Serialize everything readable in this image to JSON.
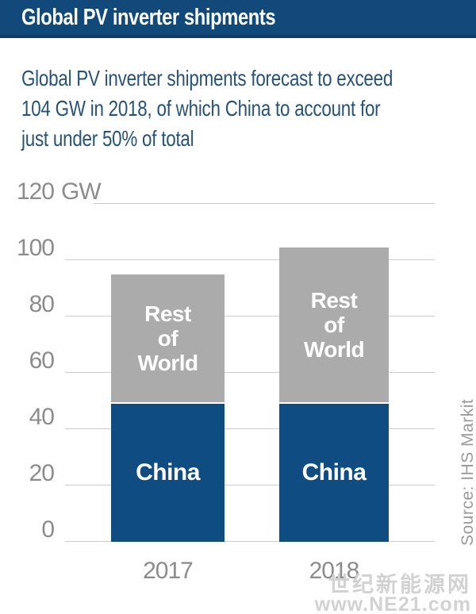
{
  "header": {
    "title": "Global PV inverter shipments"
  },
  "subtitle": {
    "lines": [
      "Global PV inverter shipments forecast to exceed",
      "104 GW in 2018, of which China to account for",
      "just under 50% of total"
    ]
  },
  "chart_data": {
    "type": "bar",
    "stacked": true,
    "categories": [
      "2017",
      "2018"
    ],
    "series": [
      {
        "name": "China",
        "values": [
          49,
          49
        ],
        "color": "#0e4c81"
      },
      {
        "name": "Rest of World",
        "values": [
          46,
          55.5
        ],
        "color": "#ababab"
      }
    ],
    "totals": [
      95,
      104.5
    ],
    "unit": "GW",
    "ylim": [
      0,
      120
    ],
    "yticks": [
      0,
      20,
      40,
      60,
      80,
      100,
      120
    ],
    "ytick_unit_suffix": "GW",
    "grid": true,
    "legend": "labels-inside-segments"
  },
  "source": {
    "label": "Source: IHS Markit"
  },
  "watermark": {
    "line1": "世纪新能源网",
    "line2": "www.NE21.com"
  },
  "colors": {
    "header_bg": "#11497b",
    "header_border": "#0d3d6b",
    "header_text": "#ffffff",
    "subtitle_text": "#265377",
    "china_bar": "#0e4c81",
    "row_bar": "#ababab",
    "gridline": "#cccccc",
    "axis_text": "#8c8c8c",
    "source_text": "#9b9b9b",
    "watermark_text": "#d2d2d2"
  }
}
